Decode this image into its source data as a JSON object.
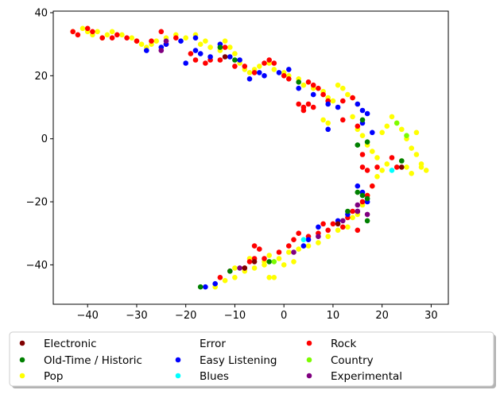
{
  "chart_data": {
    "type": "scatter",
    "title": "",
    "xlabel": "",
    "ylabel": "",
    "xlim": [
      -47,
      33.5
    ],
    "ylim": [
      -52.5,
      40.5
    ],
    "xticks": [
      -40,
      -30,
      -20,
      -10,
      0,
      10,
      20,
      30
    ],
    "yticks": [
      -40,
      -20,
      0,
      20,
      40
    ],
    "xtick_labels": [
      "−40",
      "−30",
      "−20",
      "−10",
      "0",
      "10",
      "20",
      "30"
    ],
    "ytick_labels": [
      "−40",
      "−20",
      "0",
      "20",
      "40"
    ],
    "grid": false,
    "legend": {
      "placement": "bottom-center, below plot",
      "columns": 4,
      "entries": [
        {
          "label": "Electronic",
          "color": "#800000"
        },
        {
          "label": "Old-Time / Historic",
          "color": "#008000"
        },
        {
          "label": "Pop",
          "color": "#ffff00"
        },
        {
          "label": "Error",
          "color": "#ffffff"
        },
        {
          "label": "Easy Listening",
          "color": "#0000ff"
        },
        {
          "label": "Blues",
          "color": "#00ffff"
        },
        {
          "label": "Rock",
          "color": "#ff0000"
        },
        {
          "label": "Country",
          "color": "#7cfc00"
        },
        {
          "label": "Experimental",
          "color": "#800080"
        }
      ]
    },
    "series": [
      {
        "name": "Pop",
        "color": "#ffff00",
        "points": [
          [
            -43,
            34
          ],
          [
            -41,
            35
          ],
          [
            -40,
            34
          ],
          [
            -39,
            33
          ],
          [
            -38,
            34
          ],
          [
            -37,
            32
          ],
          [
            -36,
            33
          ],
          [
            -35,
            34
          ],
          [
            -33,
            33
          ],
          [
            -31,
            32
          ],
          [
            -30,
            31
          ],
          [
            -29,
            30
          ],
          [
            -28,
            29
          ],
          [
            -27,
            30
          ],
          [
            -26,
            31
          ],
          [
            -24,
            32
          ],
          [
            -22,
            33
          ],
          [
            -20,
            32
          ],
          [
            -18,
            33
          ],
          [
            -17,
            30
          ],
          [
            -16,
            31
          ],
          [
            -15,
            29
          ],
          [
            -13,
            28
          ],
          [
            -12,
            31
          ],
          [
            -11,
            29
          ],
          [
            -10,
            27
          ],
          [
            -9,
            24
          ],
          [
            -8,
            22
          ],
          [
            -7,
            21
          ],
          [
            -6,
            22
          ],
          [
            -5,
            23
          ],
          [
            -3,
            24
          ],
          [
            -2,
            22
          ],
          [
            0,
            21
          ],
          [
            1,
            20
          ],
          [
            3,
            19
          ],
          [
            4,
            17
          ],
          [
            6,
            16
          ],
          [
            8,
            15
          ],
          [
            9,
            13
          ],
          [
            10,
            12
          ],
          [
            11,
            17
          ],
          [
            12,
            16
          ],
          [
            13,
            14
          ],
          [
            14,
            13
          ],
          [
            15,
            11
          ],
          [
            8,
            6
          ],
          [
            9,
            5
          ],
          [
            14,
            7
          ],
          [
            15,
            3
          ],
          [
            16,
            1
          ],
          [
            17,
            -2
          ],
          [
            18,
            -4
          ],
          [
            19,
            -6
          ],
          [
            20,
            2
          ],
          [
            21,
            4
          ],
          [
            22,
            7
          ],
          [
            23,
            5
          ],
          [
            24,
            3
          ],
          [
            25,
            0
          ],
          [
            26,
            -3
          ],
          [
            27,
            -5
          ],
          [
            28,
            -8
          ],
          [
            29,
            -10
          ],
          [
            24,
            -7
          ],
          [
            25,
            -9
          ],
          [
            26,
            -11
          ],
          [
            27,
            2
          ],
          [
            28,
            -9
          ],
          [
            21,
            -8
          ],
          [
            20,
            -10
          ],
          [
            19,
            -12
          ],
          [
            18,
            -15
          ],
          [
            17,
            -18
          ],
          [
            16,
            -21
          ],
          [
            15,
            -24
          ],
          [
            14,
            -25
          ],
          [
            13,
            -28
          ],
          [
            11,
            -29
          ],
          [
            9,
            -31
          ],
          [
            7,
            -33
          ],
          [
            5,
            -34
          ],
          [
            3,
            -35
          ],
          [
            1,
            -36
          ],
          [
            -1,
            -38
          ],
          [
            -3,
            -37
          ],
          [
            -4,
            -40
          ],
          [
            -6,
            -41
          ],
          [
            -8,
            -42
          ],
          [
            -10,
            -44
          ],
          [
            -12,
            -45
          ],
          [
            -14,
            -47
          ],
          [
            -2,
            -44
          ],
          [
            -3,
            -44
          ],
          [
            -4,
            -39
          ],
          [
            0,
            -40
          ],
          [
            2,
            -39
          ],
          [
            -7,
            -38
          ],
          [
            -10,
            -41
          ]
        ]
      },
      {
        "name": "Rock",
        "color": "#ff0000",
        "points": [
          [
            -43,
            34
          ],
          [
            -42,
            33
          ],
          [
            -40,
            35
          ],
          [
            -39,
            34
          ],
          [
            -37,
            32
          ],
          [
            -35,
            32
          ],
          [
            -34,
            33
          ],
          [
            -32,
            32
          ],
          [
            -30,
            31
          ],
          [
            -27,
            31
          ],
          [
            -25,
            34
          ],
          [
            -24,
            30
          ],
          [
            -22,
            32
          ],
          [
            -19,
            27
          ],
          [
            -18,
            25
          ],
          [
            -16,
            24
          ],
          [
            -15,
            25
          ],
          [
            -13,
            25
          ],
          [
            -12,
            29
          ],
          [
            -10,
            23
          ],
          [
            -8,
            23
          ],
          [
            -6,
            21
          ],
          [
            -4,
            24
          ],
          [
            -3,
            25
          ],
          [
            -2,
            24
          ],
          [
            0,
            20
          ],
          [
            1,
            19
          ],
          [
            3,
            11
          ],
          [
            4,
            10
          ],
          [
            5,
            18
          ],
          [
            6,
            17
          ],
          [
            7,
            16
          ],
          [
            8,
            14
          ],
          [
            9,
            12
          ],
          [
            12,
            12
          ],
          [
            14,
            13
          ],
          [
            4,
            9
          ],
          [
            5,
            11
          ],
          [
            6,
            10
          ],
          [
            12,
            6
          ],
          [
            15,
            4
          ],
          [
            16,
            -5
          ],
          [
            16,
            -9
          ],
          [
            17,
            -10
          ],
          [
            18,
            -15
          ],
          [
            19,
            -9
          ],
          [
            22,
            -6
          ],
          [
            23,
            -9
          ],
          [
            17,
            -18
          ],
          [
            16,
            -20
          ],
          [
            14,
            -23
          ],
          [
            13,
            -25
          ],
          [
            12,
            -28
          ],
          [
            10,
            -27
          ],
          [
            9,
            -29
          ],
          [
            8,
            -27
          ],
          [
            7,
            -30
          ],
          [
            5,
            -31
          ],
          [
            3,
            -30
          ],
          [
            2,
            -32
          ],
          [
            1,
            -34
          ],
          [
            -1,
            -36
          ],
          [
            -5,
            -35
          ],
          [
            -6,
            -38
          ],
          [
            -7,
            -39
          ],
          [
            -4,
            -38
          ],
          [
            -8,
            -41
          ],
          [
            -13,
            -44
          ],
          [
            -11,
            -42
          ],
          [
            -6,
            -34
          ],
          [
            15,
            -29
          ]
        ]
      },
      {
        "name": "Easy Listening",
        "color": "#0000ff",
        "points": [
          [
            -24,
            30
          ],
          [
            -21,
            31
          ],
          [
            -20,
            24
          ],
          [
            -18,
            28
          ],
          [
            -17,
            27
          ],
          [
            -15,
            26
          ],
          [
            -11,
            26
          ],
          [
            -7,
            19
          ],
          [
            -5,
            21
          ],
          [
            -4,
            20
          ],
          [
            -1,
            21
          ],
          [
            1,
            22
          ],
          [
            3,
            16
          ],
          [
            6,
            14
          ],
          [
            9,
            11
          ],
          [
            11,
            10
          ],
          [
            15,
            11
          ],
          [
            16,
            9
          ],
          [
            17,
            8
          ],
          [
            16,
            5
          ],
          [
            18,
            2
          ],
          [
            9,
            3
          ],
          [
            15,
            -15
          ],
          [
            16,
            -17
          ],
          [
            17,
            -20
          ],
          [
            15,
            -23
          ],
          [
            13,
            -24
          ],
          [
            11,
            -26
          ],
          [
            7,
            -28
          ],
          [
            5,
            -32
          ],
          [
            4,
            -34
          ],
          [
            -14,
            -46
          ],
          [
            -16,
            -47
          ],
          [
            -28,
            28
          ],
          [
            -25,
            29
          ],
          [
            -13,
            30
          ],
          [
            -18,
            32
          ],
          [
            -9,
            25
          ]
        ]
      },
      {
        "name": "Old-Time / Historic",
        "color": "#008000",
        "points": [
          [
            -13,
            29
          ],
          [
            -10,
            25
          ],
          [
            3,
            18
          ],
          [
            16,
            6
          ],
          [
            17,
            -1
          ],
          [
            15,
            -2
          ],
          [
            17,
            -19
          ],
          [
            16,
            -18
          ],
          [
            13,
            -23
          ],
          [
            -17,
            -47
          ],
          [
            -3,
            -39
          ],
          [
            -11,
            -42
          ],
          [
            24,
            -7
          ],
          [
            15,
            -17
          ],
          [
            17,
            -26
          ]
        ]
      },
      {
        "name": "Experimental",
        "color": "#800080",
        "points": [
          [
            -25,
            28
          ],
          [
            -24,
            31
          ],
          [
            7,
            -31
          ],
          [
            2,
            -36
          ],
          [
            -9,
            -41
          ],
          [
            15,
            -21
          ],
          [
            15,
            -23
          ],
          [
            12,
            -26
          ],
          [
            17,
            -24
          ]
        ]
      },
      {
        "name": "Electronic",
        "color": "#800000",
        "points": [
          [
            -12,
            26
          ],
          [
            24,
            -9
          ],
          [
            -6,
            -39
          ],
          [
            11,
            -27
          ],
          [
            -8,
            -41
          ]
        ]
      },
      {
        "name": "Blues",
        "color": "#00ffff",
        "points": [
          [
            22,
            -10
          ],
          [
            4,
            -32
          ]
        ]
      },
      {
        "name": "Country",
        "color": "#7cfc00",
        "points": [
          [
            23,
            5
          ],
          [
            25,
            1
          ],
          [
            -2,
            -39
          ]
        ]
      }
    ]
  }
}
